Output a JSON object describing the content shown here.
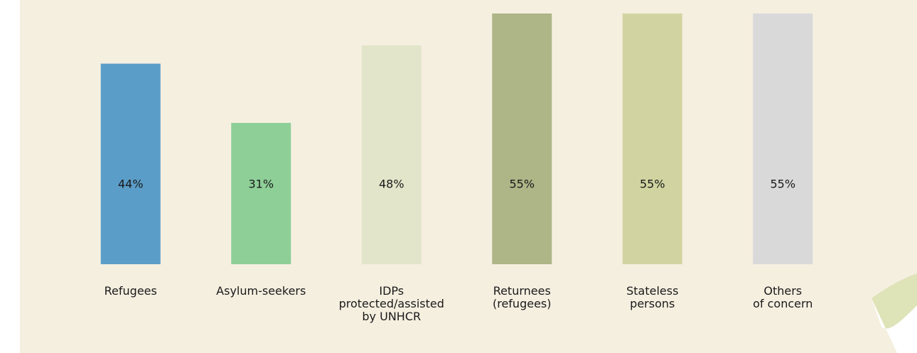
{
  "chart_data": {
    "type": "bar",
    "categories": [
      [
        "Refugees"
      ],
      [
        "Asylum-seekers"
      ],
      [
        "IDPs",
        "protected/assisted",
        "by UNHCR"
      ],
      [
        "Returnees",
        "(refugees)"
      ],
      [
        "Stateless",
        "persons"
      ],
      [
        "Others",
        "of concern"
      ]
    ],
    "values": [
      44,
      31,
      48,
      55,
      55,
      55
    ],
    "value_labels": [
      "44%",
      "31%",
      "48%",
      "55%",
      "55%",
      "55%"
    ],
    "colors": [
      "#5b9dc9",
      "#8ecf97",
      "#e2e5c9",
      "#aeb587",
      "#d1d4a0",
      "#d9d9da"
    ],
    "ylim": [
      0,
      55
    ]
  }
}
